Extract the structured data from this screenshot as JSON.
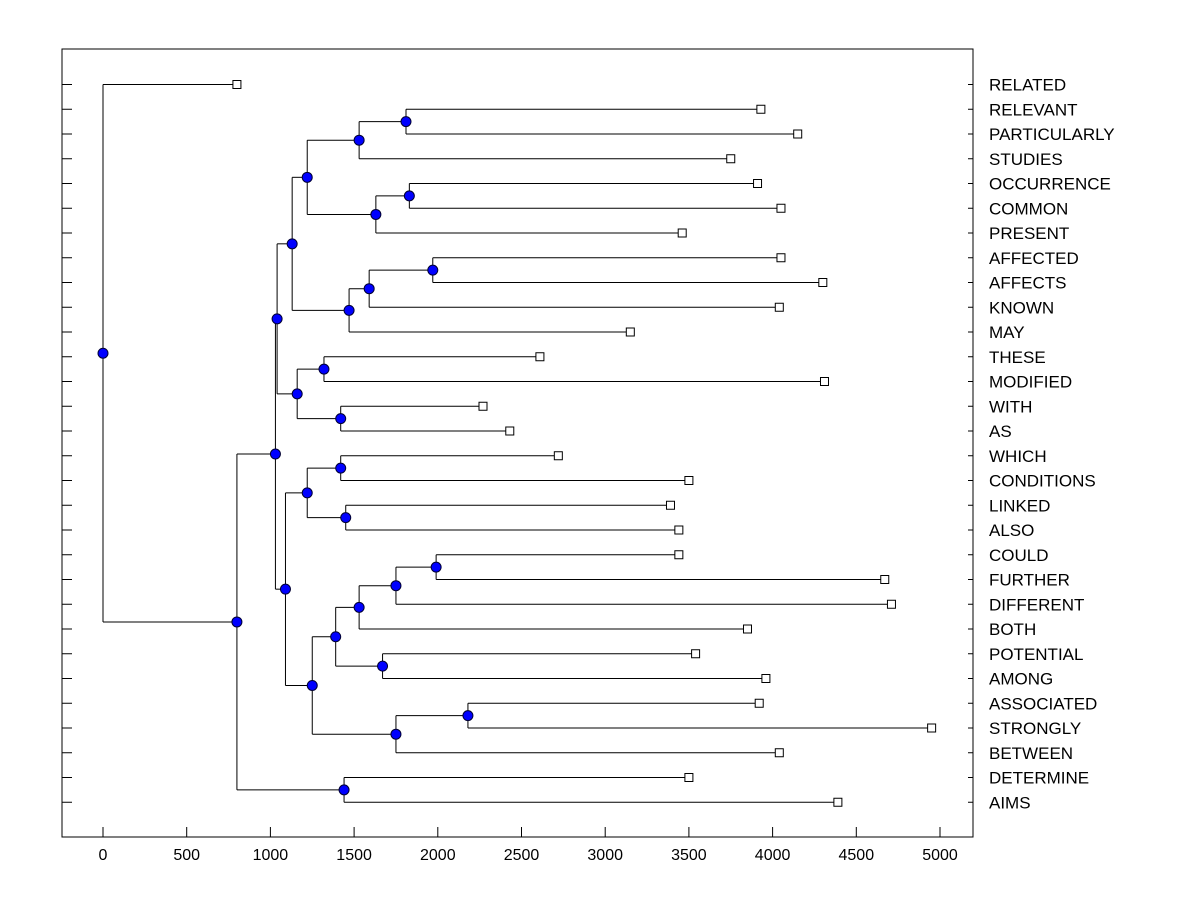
{
  "chart_data": {
    "type": "dendrogram",
    "title": "",
    "xlabel": "",
    "ylabel": "",
    "xlim": [
      -250,
      5200
    ],
    "x_ticks": [
      "0",
      "500",
      "1000",
      "1500",
      "2000",
      "2500",
      "3000",
      "3500",
      "4000",
      "4500",
      "5000"
    ],
    "grid": false,
    "legend": "none",
    "colors": {
      "node": "#0000ff",
      "line": "#000000",
      "leaf_marker": "#ffffff"
    },
    "leaves": [
      {
        "label": "RELATED",
        "value": 800
      },
      {
        "label": "RELEVANT",
        "value": 3930
      },
      {
        "label": "PARTICULARLY",
        "value": 4150
      },
      {
        "label": "STUDIES",
        "value": 3750
      },
      {
        "label": "OCCURRENCE",
        "value": 3910
      },
      {
        "label": "COMMON",
        "value": 4050
      },
      {
        "label": "PRESENT",
        "value": 3460
      },
      {
        "label": "AFFECTED",
        "value": 4050
      },
      {
        "label": "AFFECTS",
        "value": 4300
      },
      {
        "label": "KNOWN",
        "value": 4040
      },
      {
        "label": "MAY",
        "value": 3150
      },
      {
        "label": "THESE",
        "value": 2610
      },
      {
        "label": "MODIFIED",
        "value": 4310
      },
      {
        "label": "WITH",
        "value": 2270
      },
      {
        "label": "AS",
        "value": 2430
      },
      {
        "label": "WHICH",
        "value": 2720
      },
      {
        "label": "CONDITIONS",
        "value": 3500
      },
      {
        "label": "LINKED",
        "value": 3390
      },
      {
        "label": "ALSO",
        "value": 3440
      },
      {
        "label": "COULD",
        "value": 3440
      },
      {
        "label": "FURTHER",
        "value": 4670
      },
      {
        "label": "DIFFERENT",
        "value": 4710
      },
      {
        "label": "BOTH",
        "value": 3850
      },
      {
        "label": "POTENTIAL",
        "value": 3540
      },
      {
        "label": "AMONG",
        "value": 3960
      },
      {
        "label": "ASSOCIATED",
        "value": 3920
      },
      {
        "label": "STRONGLY",
        "value": 4950
      },
      {
        "label": "BETWEEN",
        "value": 4040
      },
      {
        "label": "DETERMINE",
        "value": 3500
      },
      {
        "label": "AIMS",
        "value": 4390
      }
    ],
    "merges": [
      {
        "id": "m1",
        "height": 1810,
        "children": [
          "RELEVANT",
          "PARTICULARLY"
        ]
      },
      {
        "id": "m2",
        "height": 1530,
        "children": [
          "m1",
          "STUDIES"
        ]
      },
      {
        "id": "m3",
        "height": 1830,
        "children": [
          "OCCURRENCE",
          "COMMON"
        ]
      },
      {
        "id": "m4",
        "height": 1630,
        "children": [
          "m3",
          "PRESENT"
        ]
      },
      {
        "id": "m5",
        "height": 1220,
        "children": [
          "m2",
          "m4"
        ]
      },
      {
        "id": "m6",
        "height": 1970,
        "children": [
          "AFFECTED",
          "AFFECTS"
        ]
      },
      {
        "id": "m7",
        "height": 1590,
        "children": [
          "m6",
          "KNOWN"
        ]
      },
      {
        "id": "m8",
        "height": 1470,
        "children": [
          "m7",
          "MAY"
        ]
      },
      {
        "id": "m9",
        "height": 1130,
        "children": [
          "m5",
          "m8"
        ]
      },
      {
        "id": "m10",
        "height": 1320,
        "children": [
          "THESE",
          "MODIFIED"
        ]
      },
      {
        "id": "m11",
        "height": 1420,
        "children": [
          "WITH",
          "AS"
        ]
      },
      {
        "id": "m12",
        "height": 1160,
        "children": [
          "m10",
          "m11"
        ]
      },
      {
        "id": "m13",
        "height": 1040,
        "children": [
          "m9",
          "m12"
        ]
      },
      {
        "id": "m14",
        "height": 1420,
        "children": [
          "WHICH",
          "CONDITIONS"
        ]
      },
      {
        "id": "m15",
        "height": 1450,
        "children": [
          "LINKED",
          "ALSO"
        ]
      },
      {
        "id": "m16",
        "height": 1220,
        "children": [
          "m14",
          "m15"
        ]
      },
      {
        "id": "m17",
        "height": 1990,
        "children": [
          "COULD",
          "FURTHER"
        ]
      },
      {
        "id": "m18",
        "height": 1750,
        "children": [
          "m17",
          "DIFFERENT"
        ]
      },
      {
        "id": "m19",
        "height": 1530,
        "children": [
          "m18",
          "BOTH"
        ]
      },
      {
        "id": "m20",
        "height": 1670,
        "children": [
          "POTENTIAL",
          "AMONG"
        ]
      },
      {
        "id": "m21",
        "height": 1390,
        "children": [
          "m19",
          "m20"
        ]
      },
      {
        "id": "m22",
        "height": 2180,
        "children": [
          "ASSOCIATED",
          "STRONGLY"
        ]
      },
      {
        "id": "m23",
        "height": 1750,
        "children": [
          "m22",
          "BETWEEN"
        ]
      },
      {
        "id": "m24",
        "height": 1250,
        "children": [
          "m21",
          "m23"
        ]
      },
      {
        "id": "m25",
        "height": 1090,
        "children": [
          "m16",
          "m24"
        ]
      },
      {
        "id": "m26",
        "height": 1030,
        "children": [
          "m13",
          "m25"
        ]
      },
      {
        "id": "m27",
        "height": 1440,
        "children": [
          "DETERMINE",
          "AIMS"
        ]
      },
      {
        "id": "m28",
        "height": 800,
        "children": [
          "m26",
          "m27"
        ]
      },
      {
        "id": "m29",
        "height": 0,
        "children": [
          "RELATED",
          "m28"
        ]
      }
    ]
  }
}
